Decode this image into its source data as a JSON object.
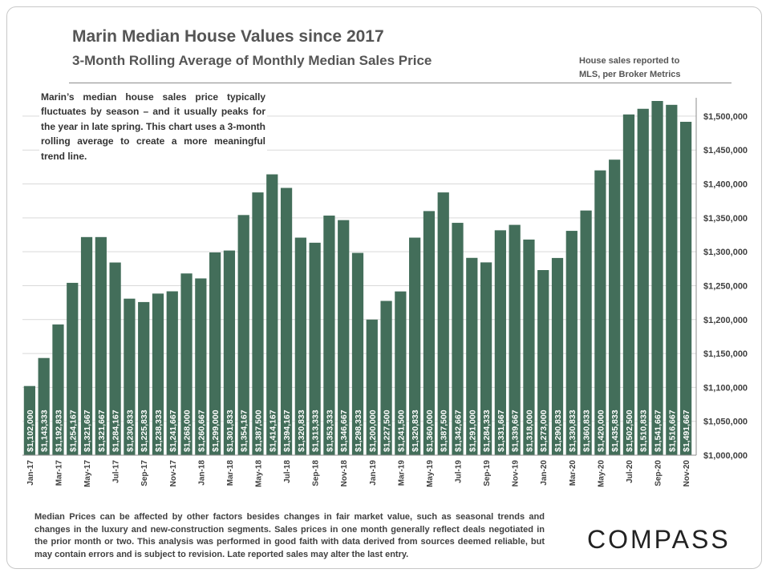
{
  "header": {
    "title": "Marin Median House Values since 2017",
    "subtitle": "3-Month Rolling Average of Monthly Median Sales Price",
    "source_line1": "House sales reported to",
    "source_line2": "MLS, per Broker Metrics"
  },
  "note": "Marin’s median house sales price typically fluctuates by season – and it usually peaks for the year in late spring. This chart uses a 3-month rolling average to create a more meaningful trend line.",
  "footer": {
    "disclaimer": "Median Prices can be affected by other factors besides changes in fair market value, such as seasonal trends and changes in the luxury and new-construction segments. Sales prices in one month generally reflect deals negotiated in the prior month or two. This analysis was performed in good faith with data derived from sources deemed reliable, but may contain errors and is subject to revision. Late reported sales may alter the last entry.",
    "brand": "COMPASS"
  },
  "colors": {
    "bar": "#436e5a",
    "bar_label": "#ffffff",
    "grid": "#d9d9d9",
    "axis_text": "#404040"
  },
  "chart_data": {
    "type": "bar",
    "title": "Marin Median House Values since 2017",
    "subtitle": "3-Month Rolling Average of Monthly Median Sales Price",
    "xlabel": "",
    "ylabel": "",
    "ylim": [
      1000000,
      1520000
    ],
    "y_axis_position": "right",
    "grid": true,
    "yticks": [
      1000000,
      1050000,
      1100000,
      1150000,
      1200000,
      1250000,
      1300000,
      1350000,
      1400000,
      1450000,
      1500000
    ],
    "ytick_labels": [
      "$1,000,000",
      "$1,050,000",
      "$1,100,000",
      "$1,150,000",
      "$1,200,000",
      "$1,250,000",
      "$1,300,000",
      "$1,350,000",
      "$1,400,000",
      "$1,450,000",
      "$1,500,000"
    ],
    "categories": [
      "Jan-17",
      "Feb-17",
      "Mar-17",
      "Apr-17",
      "May-17",
      "Jun-17",
      "Jul-17",
      "Aug-17",
      "Sep-17",
      "Oct-17",
      "Nov-17",
      "Dec-17",
      "Jan-18",
      "Feb-18",
      "Mar-18",
      "Apr-18",
      "May-18",
      "Jun-18",
      "Jul-18",
      "Aug-18",
      "Sep-18",
      "Oct-18",
      "Nov-18",
      "Dec-18",
      "Jan-19",
      "Feb-19",
      "Mar-19",
      "Apr-19",
      "May-19",
      "Jun-19",
      "Jul-19",
      "Aug-19",
      "Sep-19",
      "Oct-19",
      "Nov-19",
      "Dec-19",
      "Jan-20",
      "Feb-20",
      "Mar-20",
      "Apr-20",
      "May-20",
      "Jun-20",
      "Jul-20",
      "Aug-20",
      "Sep-20",
      "Oct-20",
      "Nov-20"
    ],
    "tick_labels": [
      "Jan-17",
      "",
      "Mar-17",
      "",
      "May-17",
      "",
      "Jul-17",
      "",
      "Sep-17",
      "",
      "Nov-17",
      "",
      "Jan-18",
      "",
      "Mar-18",
      "",
      "May-18",
      "",
      "Jul-18",
      "",
      "Sep-18",
      "",
      "Nov-18",
      "",
      "Jan-19",
      "",
      "Mar-19",
      "",
      "May-19",
      "",
      "Jul-19",
      "",
      "Sep-19",
      "",
      "Nov-19",
      "",
      "Jan-20",
      "",
      "Mar-20",
      "",
      "May-20",
      "",
      "Jul-20",
      "",
      "Sep-20",
      "",
      "Nov-20"
    ],
    "values": [
      1102000,
      1143333,
      1192833,
      1254167,
      1321667,
      1321667,
      1284167,
      1230833,
      1225833,
      1238333,
      1241667,
      1268000,
      1260667,
      1299000,
      1301833,
      1354167,
      1387500,
      1414167,
      1394167,
      1320833,
      1313333,
      1353333,
      1346667,
      1298333,
      1200000,
      1227500,
      1241500,
      1320833,
      1360000,
      1387500,
      1342667,
      1291000,
      1284333,
      1331667,
      1339667,
      1318000,
      1273000,
      1290833,
      1330833,
      1360833,
      1420000,
      1435833,
      1502500,
      1510833,
      1541667,
      1516667,
      1491667
    ],
    "data_labels": [
      "$1,102,000",
      "$1,143,333",
      "$1,192,833",
      "$1,254,167",
      "$1,321,667",
      "$1,321,667",
      "$1,284,167",
      "$1,230,833",
      "$1,225,833",
      "$1,238,333",
      "$1,241,667",
      "$1,268,000",
      "$1,260,667",
      "$1,299,000",
      "$1,301,833",
      "$1,354,167",
      "$1,387,500",
      "$1,414,167",
      "$1,394,167",
      "$1,320,833",
      "$1,313,333",
      "$1,353,333",
      "$1,346,667",
      "$1,298,333",
      "$1,200,000",
      "$1,227,500",
      "$1,241,500",
      "$1,320,833",
      "$1,360,000",
      "$1,387,500",
      "$1,342,667",
      "$1,291,000",
      "$1,284,333",
      "$1,331,667",
      "$1,339,667",
      "$1,318,000",
      "$1,273,000",
      "$1,290,833",
      "$1,330,833",
      "$1,360,833",
      "$1,420,000",
      "$1,435,833",
      "$1,502,500",
      "$1,510,833",
      "$1,541,667",
      "$1,516,667",
      "$1,491,667"
    ]
  }
}
